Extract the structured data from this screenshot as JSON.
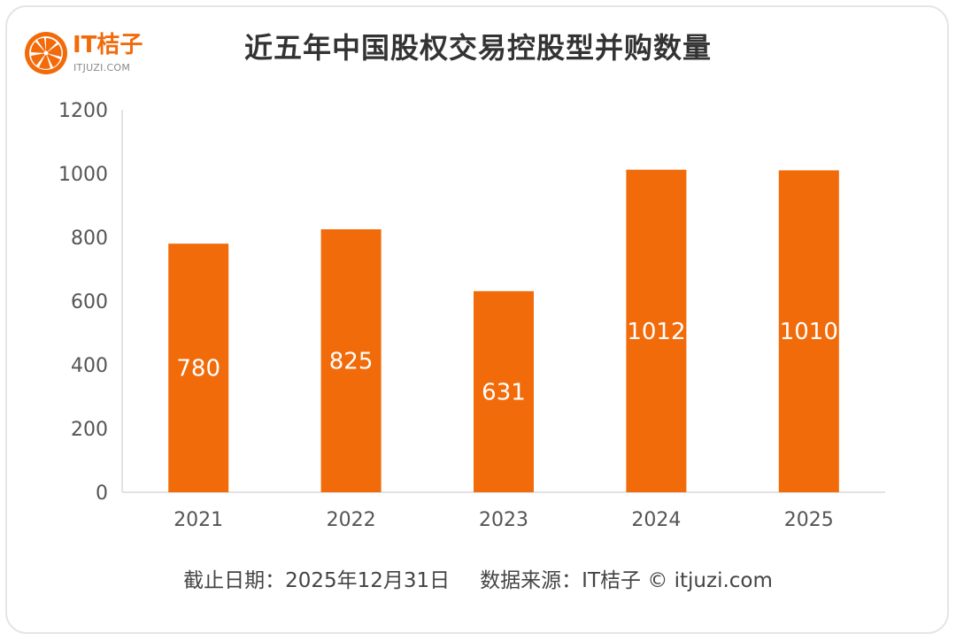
{
  "brand": {
    "name": "IT桔子",
    "url": "ITJUZI.COM",
    "color": "#F26B0A"
  },
  "chart_data": {
    "type": "bar",
    "title": "近五年中国股权交易控股型并购数量",
    "categories": [
      "2021",
      "2022",
      "2023",
      "2024",
      "2025"
    ],
    "values": [
      780,
      825,
      631,
      1012,
      1010
    ],
    "data_labels": [
      "780",
      "825",
      "631",
      "1012",
      "1010"
    ],
    "xlabel": "",
    "ylabel": "",
    "ylim": [
      0,
      1200
    ],
    "yticks": [
      0,
      200,
      400,
      600,
      800,
      1000,
      1200
    ],
    "grid": false,
    "legend": "none",
    "bar_color": "#F26B0A",
    "label_color": "#FFFFFF"
  },
  "footer": {
    "cutoff": "截止日期：2025年12月31日",
    "source": "数据来源：IT桔子 © itjuzi.com"
  }
}
